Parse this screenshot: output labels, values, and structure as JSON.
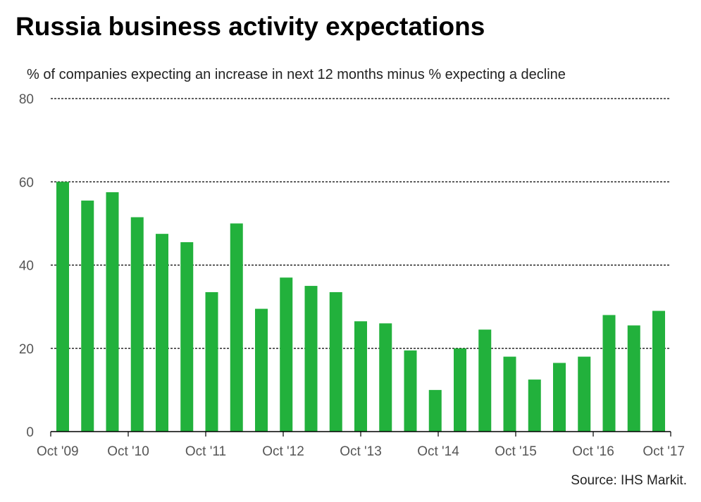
{
  "chart_data": {
    "type": "bar",
    "title": "Russia business activity expectations",
    "subtitle": "% of companies expecting an increase in next 12 months minus % expecting a decline",
    "source": "Source: IHS Markit.",
    "ylim": [
      0,
      80
    ],
    "yticks": [
      0,
      20,
      40,
      60,
      80
    ],
    "xtick_labels": [
      "Oct '09",
      "Oct '10",
      "Oct '11",
      "Oct '12",
      "Oct '13",
      "Oct '14",
      "Oct '15",
      "Oct '16",
      "Oct '17"
    ],
    "bar_color": "#22b13c",
    "grid": "dashed horizontal",
    "values": [
      60,
      55.5,
      57.5,
      51.5,
      47.5,
      45.5,
      33.5,
      50,
      29.5,
      37,
      35,
      33.5,
      26.5,
      26,
      19.5,
      10,
      20,
      24.5,
      18,
      12.5,
      16.5,
      18,
      28,
      25.5,
      29
    ]
  }
}
